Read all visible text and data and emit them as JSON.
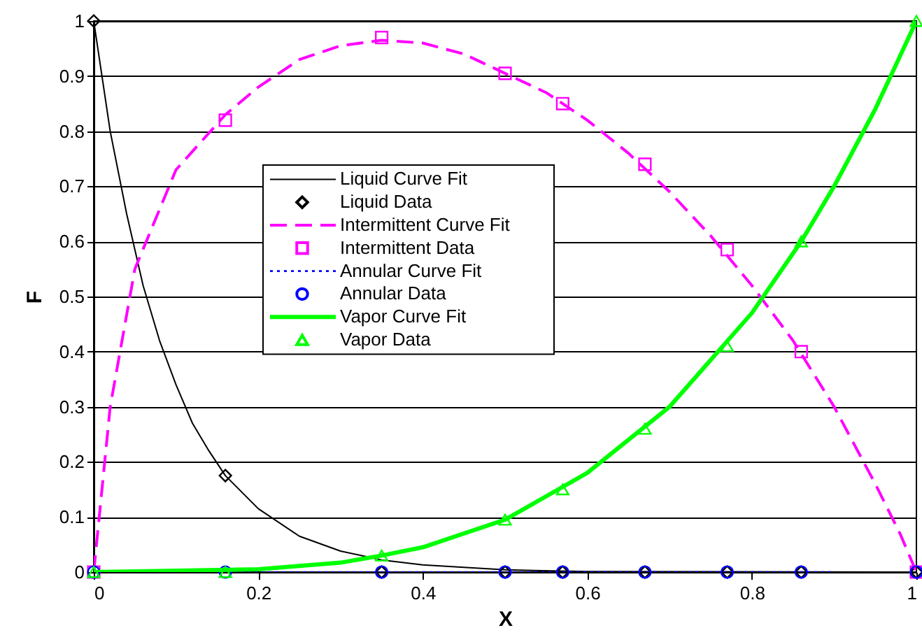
{
  "chart_data": {
    "type": "line",
    "xlabel": "X",
    "ylabel": "F",
    "xlim": [
      0,
      1
    ],
    "ylim": [
      0,
      1
    ],
    "xticks": [
      0,
      0.2,
      0.4,
      0.6,
      0.8,
      1
    ],
    "yticks": [
      0,
      0.1,
      0.2,
      0.3,
      0.4,
      0.5,
      0.6,
      0.7,
      0.8,
      0.9,
      1
    ],
    "grid": "y",
    "legend": "left",
    "series": [
      {
        "name": "Liquid Curve Fit",
        "line_style": "solid",
        "marker": "none",
        "color": "#000000",
        "x": [
          0,
          0.02,
          0.04,
          0.06,
          0.08,
          0.1,
          0.12,
          0.14,
          0.16,
          0.2,
          0.25,
          0.3,
          0.35,
          0.4,
          0.5,
          0.6,
          1
        ],
        "values": [
          1,
          0.8,
          0.65,
          0.52,
          0.42,
          0.34,
          0.27,
          0.22,
          0.175,
          0.115,
          0.065,
          0.038,
          0.022,
          0.013,
          0.004,
          0.001,
          0
        ]
      },
      {
        "name": "Liquid Data",
        "type": "scatter",
        "marker": "diamond",
        "color": "#000000",
        "x": [
          0,
          0.16,
          0.35,
          0.5,
          0.57,
          0.67,
          0.77,
          0.86,
          1
        ],
        "values": [
          1,
          0.175,
          0,
          0,
          0,
          0,
          0,
          0,
          0
        ]
      },
      {
        "name": "Intermittent Curve Fit",
        "line_style": "dashed",
        "marker": "none",
        "color": "#ff00ff",
        "x": [
          0,
          0.02,
          0.05,
          0.1,
          0.16,
          0.2,
          0.25,
          0.3,
          0.35,
          0.4,
          0.45,
          0.5,
          0.55,
          0.6,
          0.65,
          0.7,
          0.75,
          0.8,
          0.85,
          0.9,
          0.95,
          0.98,
          1
        ],
        "values": [
          0,
          0.3,
          0.55,
          0.73,
          0.83,
          0.88,
          0.93,
          0.955,
          0.965,
          0.96,
          0.94,
          0.905,
          0.87,
          0.82,
          0.76,
          0.69,
          0.61,
          0.52,
          0.42,
          0.3,
          0.16,
          0.07,
          0
        ]
      },
      {
        "name": "Intermittent Data",
        "type": "scatter",
        "marker": "square",
        "color": "#ff00ff",
        "x": [
          0,
          0.16,
          0.35,
          0.5,
          0.57,
          0.67,
          0.77,
          0.86,
          1
        ],
        "values": [
          0,
          0.82,
          0.97,
          0.905,
          0.85,
          0.74,
          0.585,
          0.4,
          0
        ]
      },
      {
        "name": "Annular Curve Fit",
        "line_style": "dotted",
        "marker": "none",
        "color": "#0000ff",
        "x": [
          0,
          0.2,
          0.4,
          0.6,
          0.8,
          0.9
        ],
        "values": [
          0,
          0,
          0,
          0,
          0,
          0
        ]
      },
      {
        "name": "Annular Data",
        "type": "scatter",
        "marker": "circle",
        "color": "#0000ff",
        "x": [
          0,
          0.16,
          0.35,
          0.5,
          0.57,
          0.67,
          0.77,
          0.86,
          1
        ],
        "values": [
          0,
          0,
          0,
          0,
          0,
          0,
          0,
          0,
          0
        ]
      },
      {
        "name": "Vapor Curve Fit",
        "line_style": "solid",
        "marker": "none",
        "color": "#00ff00",
        "x": [
          0,
          0.2,
          0.3,
          0.35,
          0.4,
          0.5,
          0.6,
          0.7,
          0.8,
          0.86,
          0.9,
          0.95,
          1
        ],
        "values": [
          0,
          0.005,
          0.017,
          0.03,
          0.045,
          0.095,
          0.18,
          0.3,
          0.47,
          0.6,
          0.7,
          0.84,
          1
        ]
      },
      {
        "name": "Vapor Data",
        "type": "scatter",
        "marker": "triangle",
        "color": "#00ff00",
        "x": [
          0,
          0.16,
          0.35,
          0.5,
          0.57,
          0.67,
          0.77,
          0.86,
          1
        ],
        "values": [
          0,
          0,
          0.03,
          0.095,
          0.15,
          0.26,
          0.41,
          0.6,
          1
        ]
      }
    ]
  }
}
